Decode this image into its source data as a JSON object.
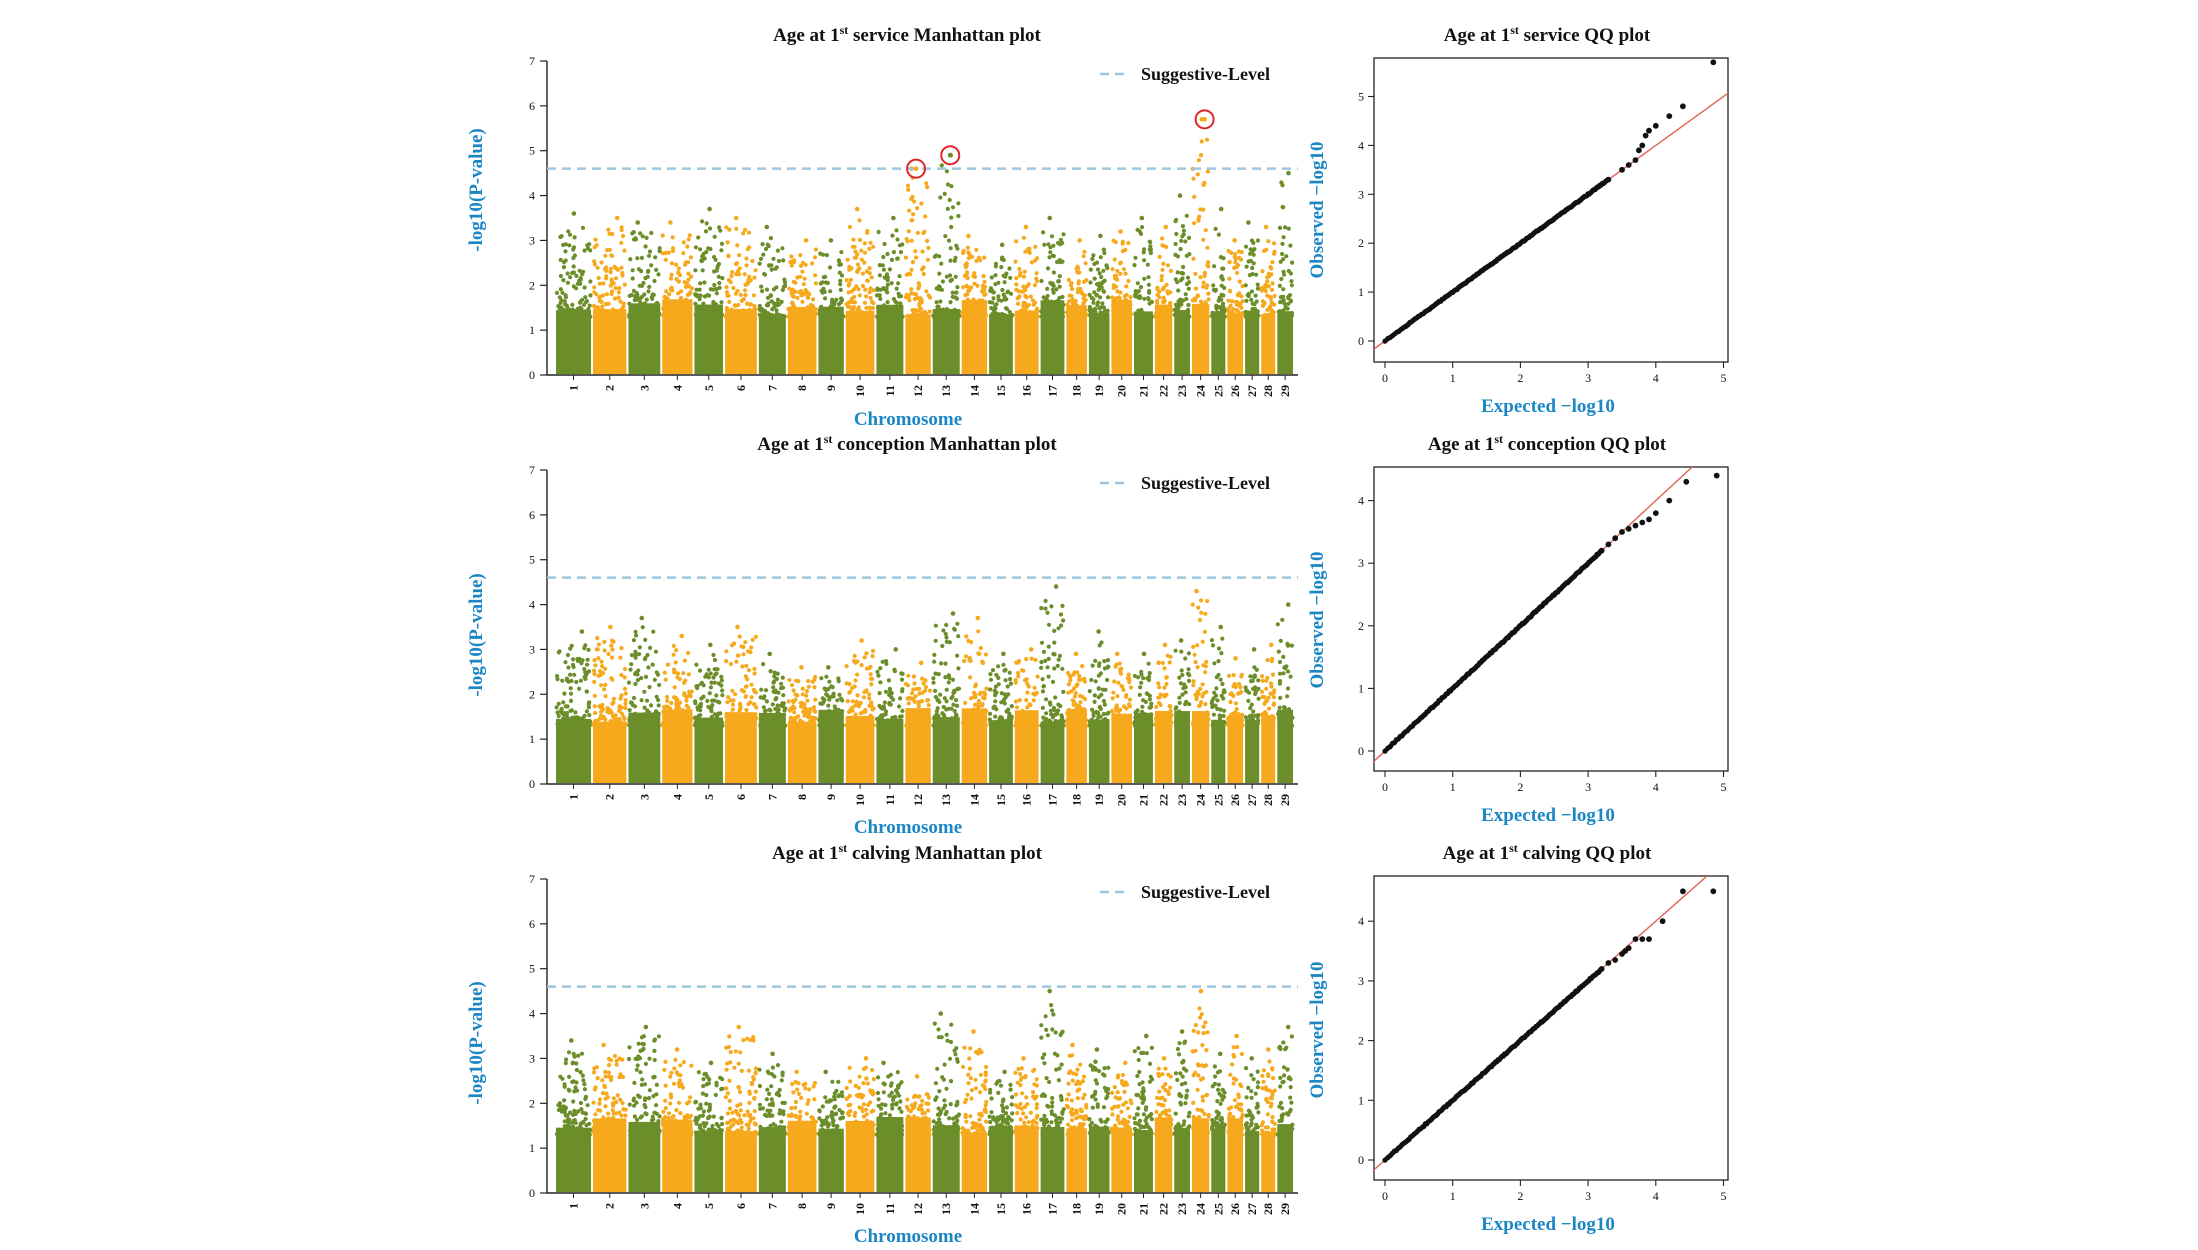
{
  "colors": {
    "chr_odd": "#6b8e2a",
    "chr_even": "#f6a91c",
    "threshold": "#9fc6e0",
    "axis_label": "#1a86c4",
    "qq_line": "#e06a5c",
    "qq_points": "#111111",
    "highlight_circle": "#e0262b"
  },
  "legend_label": "Suggestive-Level",
  "panels": [
    {
      "manhattan": {
        "title_pre": "Age  at 1",
        "title_sup": "st",
        "title_post": " service Manhattan plot",
        "ylabel": "-log10(P-value)",
        "xlabel": "Chromosome"
      },
      "qq": {
        "title_pre": "Age  at 1",
        "title_sup": "st",
        "title_post": " service QQ plot",
        "ylabel": "Observed −log10",
        "xlabel": "Expected −log10"
      }
    },
    {
      "manhattan": {
        "title_pre": "Age at 1",
        "title_sup": "st",
        "title_post": " conception Manhattan plot",
        "ylabel": "-log10(P-value)",
        "xlabel": "Chromosome"
      },
      "qq": {
        "title_pre": "Age at 1",
        "title_sup": "st",
        "title_post": " conception QQ plot",
        "ylabel": "Observed −log10",
        "xlabel": "Expected −log10"
      }
    },
    {
      "manhattan": {
        "title_pre": "Age at 1",
        "title_sup": "st",
        "title_post": " calving Manhattan plot",
        "ylabel": "-log10(P-value)",
        "xlabel": "Chromosome"
      },
      "qq": {
        "title_pre": "Age at 1",
        "title_sup": "st",
        "title_post": " calving QQ plot",
        "ylabel": "Observed −log10",
        "xlabel": "Expected −log10"
      }
    }
  ],
  "chart_data": [
    {
      "type": "scatter",
      "subtype": "manhattan",
      "title": "Age  at 1st service Manhattan plot",
      "xlabel": "Chromosome",
      "ylabel": "-log10(P-value)",
      "ylim": [
        0,
        7
      ],
      "yticks": [
        0,
        1,
        2,
        3,
        4,
        5,
        6,
        7
      ],
      "chromosomes": [
        "1",
        "2",
        "3",
        "4",
        "5",
        "6",
        "7",
        "8",
        "9",
        "10",
        "11",
        "12",
        "13",
        "14",
        "15",
        "16",
        "17",
        "18",
        "19",
        "20",
        "21",
        "22",
        "23",
        "24",
        "25",
        "26",
        "27",
        "28",
        "29"
      ],
      "suggestive_level": 4.6,
      "legend": [
        "Suggestive-Level"
      ],
      "chr_peaks": [
        3.6,
        3.5,
        3.4,
        3.4,
        3.7,
        3.5,
        3.3,
        3.0,
        3.0,
        3.7,
        3.5,
        4.6,
        4.9,
        3.1,
        2.9,
        3.3,
        3.5,
        3.0,
        3.1,
        3.2,
        3.5,
        3.3,
        4.0,
        5.7,
        3.7,
        3.0,
        3.4,
        3.3,
        4.5
      ],
      "highlighted_snps": [
        {
          "chr": "12",
          "value": 4.6
        },
        {
          "chr": "13",
          "value": 4.9
        },
        {
          "chr": "24",
          "value": 5.7
        }
      ]
    },
    {
      "type": "scatter",
      "subtype": "qq",
      "title": "Age  at 1st service QQ plot",
      "xlabel": "Expected −log10",
      "ylabel": "Observed −log10",
      "xlim": [
        0,
        5
      ],
      "ylim": [
        0,
        5.7
      ],
      "xticks": [
        0,
        1,
        2,
        3,
        4,
        5
      ],
      "yticks": [
        0,
        1,
        2,
        3,
        4,
        5
      ],
      "tail_points": [
        [
          3.3,
          3.3
        ],
        [
          3.5,
          3.5
        ],
        [
          3.6,
          3.6
        ],
        [
          3.7,
          3.7
        ],
        [
          3.75,
          3.9
        ],
        [
          3.8,
          4.0
        ],
        [
          3.85,
          4.2
        ],
        [
          3.9,
          4.3
        ],
        [
          4.0,
          4.4
        ],
        [
          4.2,
          4.6
        ],
        [
          4.4,
          4.8
        ],
        [
          4.85,
          5.7
        ]
      ]
    },
    {
      "type": "scatter",
      "subtype": "manhattan",
      "title": "Age at 1st conception Manhattan plot",
      "xlabel": "Chromosome",
      "ylabel": "-log10(P-value)",
      "ylim": [
        0,
        7
      ],
      "yticks": [
        0,
        1,
        2,
        3,
        4,
        5,
        6,
        7
      ],
      "chromosomes": [
        "1",
        "2",
        "3",
        "4",
        "5",
        "6",
        "7",
        "8",
        "9",
        "10",
        "11",
        "12",
        "13",
        "14",
        "15",
        "16",
        "17",
        "18",
        "19",
        "20",
        "21",
        "22",
        "23",
        "24",
        "25",
        "26",
        "27",
        "28",
        "29"
      ],
      "suggestive_level": 4.6,
      "legend": [
        "Suggestive-Level"
      ],
      "chr_peaks": [
        3.4,
        3.5,
        3.7,
        3.3,
        3.1,
        3.5,
        2.9,
        2.6,
        2.6,
        3.2,
        3.0,
        2.7,
        3.8,
        3.7,
        2.9,
        3.0,
        4.4,
        2.9,
        3.4,
        2.9,
        2.9,
        3.1,
        3.2,
        4.3,
        3.5,
        2.8,
        3.0,
        3.1,
        4.0
      ],
      "highlighted_snps": []
    },
    {
      "type": "scatter",
      "subtype": "qq",
      "title": "Age at 1st conception QQ plot",
      "xlabel": "Expected −log10",
      "ylabel": "Observed −log10",
      "xlim": [
        0,
        5
      ],
      "ylim": [
        0,
        4.5
      ],
      "xticks": [
        0,
        1,
        2,
        3,
        4,
        5
      ],
      "yticks": [
        0,
        1,
        2,
        3,
        4
      ],
      "tail_points": [
        [
          3.2,
          3.2
        ],
        [
          3.3,
          3.3
        ],
        [
          3.4,
          3.4
        ],
        [
          3.5,
          3.5
        ],
        [
          3.6,
          3.55
        ],
        [
          3.7,
          3.6
        ],
        [
          3.8,
          3.65
        ],
        [
          3.9,
          3.7
        ],
        [
          4.0,
          3.8
        ],
        [
          4.2,
          4.0
        ],
        [
          4.45,
          4.3
        ],
        [
          4.9,
          4.4
        ]
      ]
    },
    {
      "type": "scatter",
      "subtype": "manhattan",
      "title": "Age at 1st calving Manhattan plot",
      "xlabel": "Chromosome",
      "ylabel": "-log10(P-value)",
      "ylim": [
        0,
        7
      ],
      "yticks": [
        0,
        1,
        2,
        3,
        4,
        5,
        6,
        7
      ],
      "chromosomes": [
        "1",
        "2",
        "3",
        "4",
        "5",
        "6",
        "7",
        "8",
        "9",
        "10",
        "11",
        "12",
        "13",
        "14",
        "15",
        "16",
        "17",
        "18",
        "19",
        "20",
        "21",
        "22",
        "23",
        "24",
        "25",
        "26",
        "27",
        "28",
        "29"
      ],
      "suggestive_level": 4.6,
      "legend": [
        "Suggestive-Level"
      ],
      "chr_peaks": [
        3.4,
        3.3,
        3.7,
        3.2,
        2.9,
        3.7,
        3.1,
        2.7,
        2.7,
        3.0,
        2.9,
        2.6,
        4.0,
        3.6,
        2.7,
        3.0,
        4.5,
        3.3,
        3.2,
        2.9,
        3.5,
        3.0,
        3.6,
        4.5,
        3.1,
        3.5,
        3.0,
        3.2,
        3.7
      ],
      "highlighted_snps": []
    },
    {
      "type": "scatter",
      "subtype": "qq",
      "title": "Age at 1st calving QQ plot",
      "xlabel": "Expected −log10",
      "ylabel": "Observed −log10",
      "xlim": [
        0,
        5
      ],
      "ylim": [
        0,
        4.6
      ],
      "xticks": [
        0,
        1,
        2,
        3,
        4,
        5
      ],
      "yticks": [
        0,
        1,
        2,
        3,
        4
      ],
      "tail_points": [
        [
          3.2,
          3.2
        ],
        [
          3.3,
          3.3
        ],
        [
          3.4,
          3.35
        ],
        [
          3.5,
          3.45
        ],
        [
          3.55,
          3.5
        ],
        [
          3.6,
          3.55
        ],
        [
          3.7,
          3.7
        ],
        [
          3.8,
          3.7
        ],
        [
          3.9,
          3.7
        ],
        [
          4.1,
          4.0
        ],
        [
          4.4,
          4.5
        ],
        [
          4.85,
          4.5
        ]
      ]
    }
  ]
}
